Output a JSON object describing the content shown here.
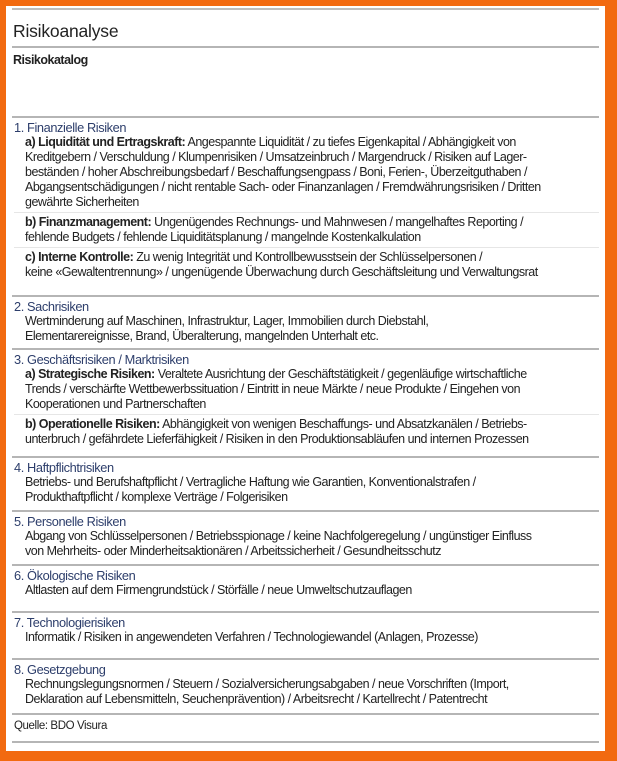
{
  "title": "Risikoanalyse",
  "subtitle": "Risikokatalog",
  "colors": {
    "frame": "#f26a10",
    "heading": "#2d3e6b",
    "rule": "#b5b5b5"
  },
  "sections": [
    {
      "heading": "1. Finanzielle Risiken",
      "minh": 179,
      "items": [
        {
          "label": "a) Liquidität und Ertragskraft:",
          "lines": [
            "Angespannte Liquidität / zu tiefes Eigenkapital / Abhängigkeit von",
            "Kreditgebern / Verschuldung / Klumpenrisiken / Umsatzeinbruch / Margendruck / Risiken auf Lager-",
            "beständen / hoher Abschreibungsbedarf / Beschaffungsengpass / Boni, Ferien-, Überzeitguthaben /",
            "Abgangsentschädigungen / nicht rentable Sach- oder Finanzanlagen / Fremdwährungsrisiken / Dritten",
            "gewährte Sicherheiten"
          ]
        },
        {
          "label": "b) Finanzmanagement:",
          "lines": [
            "Ungenügendes Rechnungs- und Mahnwesen / mangelhaftes Reporting /",
            "fehlende Budgets / fehlende Liquiditätsplanung / mangelnde Kostenkalkulation"
          ]
        },
        {
          "label": "c) Interne Kontrolle:",
          "lines": [
            "Zu wenig Integrität und Kontrollbewusstsein der Schlüsselpersonen /",
            "keine «Gewaltentrennung» / ungenügende Überwachung durch Geschäftsleitung und Verwaltungsrat"
          ]
        }
      ]
    },
    {
      "heading": "2. Sachrisiken",
      "minh": 53,
      "items": [
        {
          "label": "",
          "lines": [
            "Wertminderung auf Maschinen, Infrastruktur, Lager, Immobilien durch Diebstahl,",
            "Elementarereignisse, Brand, Überalterung, mangelnden Unterhalt etc."
          ]
        }
      ]
    },
    {
      "heading": "3. Geschäftsrisiken / Marktrisiken",
      "minh": 108,
      "items": [
        {
          "label": "a) Strategische Risiken:",
          "lines": [
            "Veraltete Ausrichtung der Geschäftstätigkeit / gegenläufige wirtschaftliche",
            "Trends / verschärfte Wettbewerbssituation / Eintritt in neue Märkte / neue Produkte / Eingehen von",
            "Kooperationen und Partnerschaften"
          ]
        },
        {
          "label": "b) Operationelle Risiken:",
          "lines": [
            "Abhängigkeit von wenigen Beschaffungs- und Absatzkanälen / Betriebs-",
            "unterbruch / gefährdete Lieferfähigkeit / Risiken in den Produktionsabläufen und internen Prozessen"
          ]
        }
      ]
    },
    {
      "heading": "4. Haftpflichtrisiken",
      "minh": 54,
      "items": [
        {
          "label": "",
          "lines": [
            "Betriebs- und Berufshaftpflicht / Vertragliche Haftung wie Garantien, Konventionalstrafen /",
            "Produkthaftpflicht / komplexe Verträge / Folgerisiken"
          ]
        }
      ]
    },
    {
      "heading": "5. Personelle Risiken",
      "minh": 54,
      "items": [
        {
          "label": "",
          "lines": [
            "Abgang von Schlüsselpersonen / Betriebsspionage / keine Nachfolgeregelung / ungünstiger Einfluss",
            "von Mehrheits- oder Minderheitsaktionären / Arbeitssicherheit / Gesundheitsschutz"
          ]
        }
      ]
    },
    {
      "heading": "6. Ökologische Risiken",
      "minh": 47,
      "items": [
        {
          "label": "",
          "lines": [
            "Altlasten auf dem Firmengrundstück / Störfälle / neue Umweltschutzauflagen"
          ]
        }
      ]
    },
    {
      "heading": "7. Technologierisiken",
      "minh": 47,
      "items": [
        {
          "label": "",
          "lines": [
            "Informatik / Risiken in angewendeten Verfahren / Technologiewandel (Anlagen, Prozesse)"
          ]
        }
      ]
    },
    {
      "heading": "8. Gesetzgebung",
      "minh": 55,
      "items": [
        {
          "label": "",
          "lines": [
            "Rechnungslegungsnormen / Steuern / Sozialversicherungsabgaben / neue Vorschriften (Import,",
            "Deklaration auf Lebensmitteln, Seuchenprävention) / Arbeitsrecht / Kartellrecht / Patentrecht"
          ]
        }
      ]
    }
  ],
  "source": "Quelle: BDO Visura"
}
